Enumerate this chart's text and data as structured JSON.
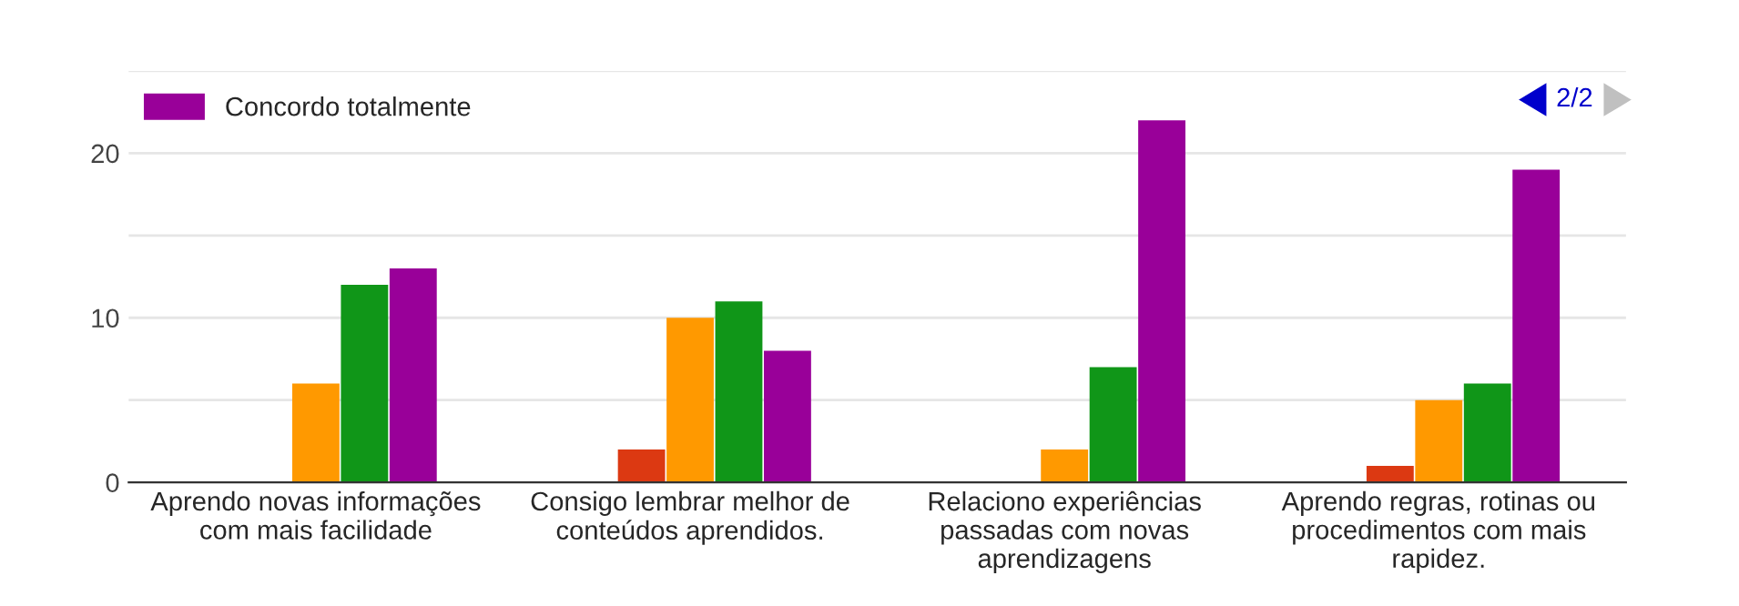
{
  "chart_data": {
    "type": "bar",
    "categories": [
      "Aprendo novas informações\ncom mais facilidade",
      "Consigo lembrar melhor de\nconteúdos aprendidos.",
      "Relaciono experiências\npassadas com novas\naprendizagens",
      "Aprendo regras, rotinas ou\nprocedimentos com mais\nrapidez."
    ],
    "series": [
      {
        "color": "#3366cc",
        "values": [
          0,
          0,
          0,
          0
        ]
      },
      {
        "color": "#dc3912",
        "values": [
          0,
          2,
          0,
          1
        ]
      },
      {
        "color": "#ff9900",
        "values": [
          6,
          10,
          2,
          5
        ]
      },
      {
        "color": "#109618",
        "values": [
          12,
          11,
          7,
          6
        ]
      },
      {
        "name": "Concordo totalmente",
        "color": "#990099",
        "values": [
          13,
          8,
          22,
          19
        ]
      }
    ],
    "ylim": [
      0,
      25
    ],
    "yticks": [
      0,
      {
        "value": 5,
        "label": null
      },
      10,
      {
        "value": 15,
        "label": null
      },
      20,
      {
        "value": 25,
        "label": null
      }
    ],
    "grid": "y",
    "legend": "top left",
    "annotations": [
      "2/2"
    ]
  }
}
